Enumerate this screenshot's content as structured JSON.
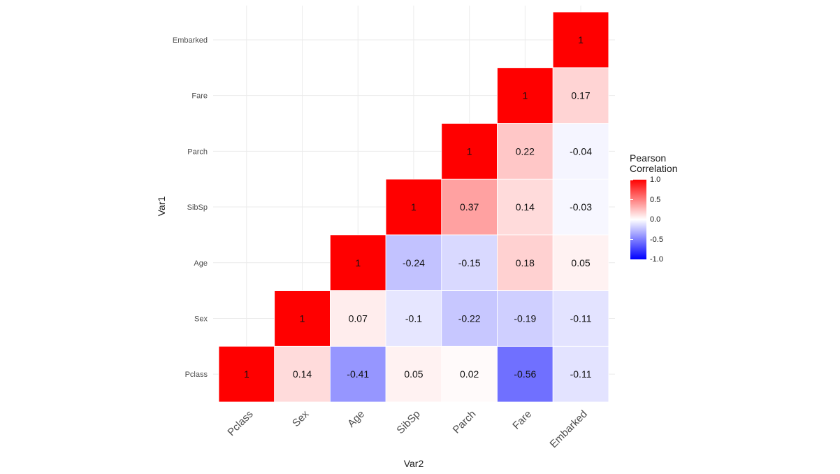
{
  "chart_data": {
    "type": "heatmap",
    "title": "",
    "xlabel": "Var2",
    "ylabel": "Var1",
    "variables": [
      "Pclass",
      "Sex",
      "Age",
      "SibSp",
      "Parch",
      "Fare",
      "Embarked"
    ],
    "matrix_upper_triangle": [
      {
        "row": "Pclass",
        "values": [
          1,
          0.14,
          -0.41,
          0.05,
          0.02,
          -0.56,
          -0.11
        ]
      },
      {
        "row": "Sex",
        "values": [
          null,
          1,
          0.07,
          -0.1,
          -0.22,
          -0.19,
          -0.11
        ]
      },
      {
        "row": "Age",
        "values": [
          null,
          null,
          1,
          -0.24,
          -0.15,
          0.18,
          0.05
        ]
      },
      {
        "row": "SibSp",
        "values": [
          null,
          null,
          null,
          1,
          0.37,
          0.14,
          -0.03
        ]
      },
      {
        "row": "Parch",
        "values": [
          null,
          null,
          null,
          null,
          1,
          0.22,
          -0.04
        ]
      },
      {
        "row": "Fare",
        "values": [
          null,
          null,
          null,
          null,
          null,
          1,
          0.17
        ]
      },
      {
        "row": "Embarked",
        "values": [
          null,
          null,
          null,
          null,
          null,
          null,
          1
        ]
      }
    ],
    "color_scale": {
      "low": "#0000ff",
      "mid": "#ffffff",
      "high": "#ff0000",
      "limits": [
        -1,
        1
      ]
    },
    "legend": {
      "title_line1": "Pearson",
      "title_line2": "Correlation",
      "ticks": [
        "1.0",
        "0.5",
        "0.0",
        "-0.5",
        "-1.0"
      ],
      "placement": "right"
    },
    "grid": true
  }
}
